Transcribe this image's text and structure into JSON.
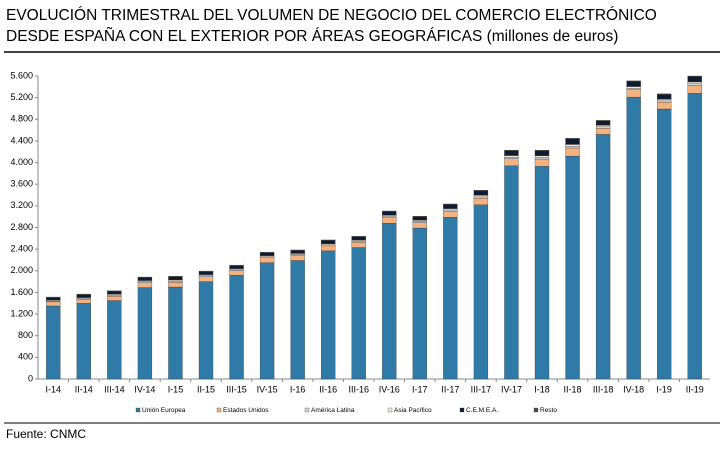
{
  "chart_data": {
    "type": "stacked_bar",
    "title": "EVOLUCIÓN TRIMESTRAL DEL VOLUMEN DE NEGOCIO DEL COMERCIO ELECTRÓNICO",
    "subtitle": "DESDE ESPAÑA CON EL EXTERIOR POR ÁREAS GEOGRÁFICAS (millones de euros)",
    "source": "Fuente: CNMC",
    "categories": [
      "I-14",
      "II-14",
      "III-14",
      "IV-14",
      "I-15",
      "II-15",
      "III-15",
      "IV-15",
      "I-16",
      "II-16",
      "III-16",
      "IV-16",
      "I-17",
      "II-17",
      "III-17",
      "IV-17",
      "I-18",
      "II-18",
      "III-18",
      "IV-18",
      "I-19",
      "II-19"
    ],
    "series": [
      {
        "name": "Unión Europea",
        "color": "#2f7aa6",
        "values": [
          1350,
          1400,
          1450,
          1690,
          1700,
          1800,
          1920,
          2150,
          2190,
          2370,
          2430,
          2880,
          2790,
          2990,
          3220,
          3940,
          3930,
          4120,
          4520,
          5210,
          4990,
          5280
        ]
      },
      {
        "name": "Estados Unidos",
        "color": "#f3b27f",
        "values": [
          75,
          75,
          80,
          90,
          90,
          90,
          85,
          90,
          90,
          90,
          95,
          100,
          100,
          110,
          120,
          130,
          135,
          150,
          115,
          135,
          125,
          145
        ]
      },
      {
        "name": "América Latina",
        "color": "#c9d6e0",
        "values": [
          15,
          15,
          15,
          20,
          20,
          20,
          15,
          20,
          20,
          20,
          20,
          20,
          20,
          25,
          25,
          30,
          30,
          30,
          25,
          30,
          25,
          30
        ]
      },
      {
        "name": "Asia Pacífico",
        "color": "#fbe2c8",
        "values": [
          15,
          15,
          20,
          20,
          20,
          20,
          20,
          20,
          20,
          20,
          20,
          25,
          25,
          25,
          30,
          30,
          30,
          35,
          30,
          30,
          30,
          35
        ]
      },
      {
        "name": "C.E.M.E.A.",
        "color": "#0d1b33",
        "values": [
          50,
          55,
          55,
          55,
          60,
          55,
          55,
          55,
          55,
          60,
          65,
          70,
          65,
          75,
          85,
          90,
          95,
          105,
          80,
          95,
          90,
          100
        ]
      },
      {
        "name": "Resto",
        "color": "#5a4a3a",
        "values": [
          10,
          10,
          10,
          10,
          10,
          10,
          10,
          10,
          10,
          10,
          10,
          10,
          10,
          10,
          10,
          10,
          10,
          10,
          10,
          10,
          10,
          10
        ]
      }
    ],
    "ylim": [
      0,
      5600
    ],
    "yticks": [
      0,
      400,
      800,
      {
        "value": 1200,
        "label": "1.200"
      },
      {
        "value": 1600,
        "label": "1.600"
      },
      {
        "value": 2000,
        "label": "2.000"
      },
      {
        "value": 2400,
        "label": "2.400"
      },
      {
        "value": 2800,
        "label": "2.800"
      },
      {
        "value": 3200,
        "label": "3.200"
      },
      {
        "value": 3600,
        "label": "3.600"
      },
      {
        "value": 4000,
        "label": "4.000"
      },
      {
        "value": 4400,
        "label": "4.400"
      },
      {
        "value": 4800,
        "label": "4.800"
      },
      {
        "value": 5200,
        "label": "5.200"
      },
      {
        "value": 5600,
        "label": "5.600"
      }
    ],
    "grid": false
  }
}
